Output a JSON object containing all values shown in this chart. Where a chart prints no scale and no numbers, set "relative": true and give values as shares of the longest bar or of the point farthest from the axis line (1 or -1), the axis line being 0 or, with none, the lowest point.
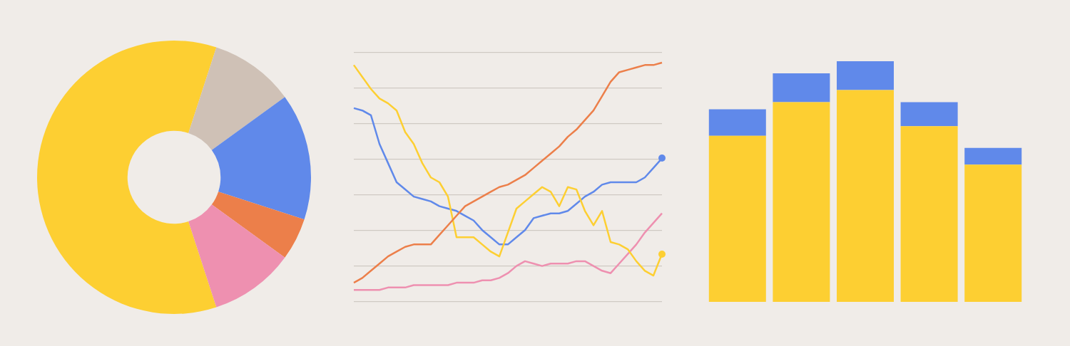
{
  "chart_data": [
    {
      "type": "donut",
      "categories": [
        null,
        null,
        null,
        null,
        null,
        null
      ],
      "values": [
        60,
        10,
        10,
        5,
        5,
        10
      ],
      "colors": [
        "#fdcf32",
        "#cfc1b6",
        "#6089ea",
        "#6089ea",
        "#ec7f4a",
        "#ee90b0"
      ]
    },
    {
      "type": "line",
      "relative": true,
      "grid": "y",
      "categories": [
        null,
        null,
        null,
        null,
        null,
        null,
        null,
        null,
        null,
        null,
        null,
        null,
        null,
        null,
        null,
        null,
        null,
        null,
        null,
        null,
        null,
        null,
        null,
        null,
        null,
        null,
        null,
        null,
        null,
        null,
        null,
        null,
        null,
        null,
        null,
        null,
        null
      ],
      "series": [
        {
          "color": "#ec7f4a",
          "values": [
            0.08,
            0.1,
            0.13,
            0.16,
            0.19,
            0.21,
            0.23,
            0.24,
            0.24,
            0.24,
            0.28,
            0.32,
            0.36,
            0.4,
            0.42,
            0.44,
            0.46,
            0.48,
            0.49,
            0.51,
            0.53,
            0.56,
            0.59,
            0.62,
            0.65,
            0.69,
            0.72,
            0.76,
            0.8,
            0.86,
            0.92,
            0.96,
            0.97,
            0.98,
            0.99,
            0.99,
            1
          ]
        },
        {
          "color": "#fdcf32",
          "values": [
            0.99,
            0.94,
            0.89,
            0.85,
            0.83,
            0.8,
            0.71,
            0.66,
            0.58,
            0.52,
            0.5,
            0.44,
            0.27,
            0.27,
            0.27,
            0.24,
            0.21,
            0.19,
            0.29,
            0.39,
            0.42,
            0.45,
            0.48,
            0.46,
            0.4,
            0.48,
            0.47,
            0.38,
            0.32,
            0.38,
            0.25,
            0.24,
            0.22,
            0.17,
            0.13,
            0.11,
            0.2
          ]
        },
        {
          "color": "#6089ea",
          "values": [
            0.81,
            0.8,
            0.78,
            0.66,
            0.58,
            0.5,
            0.47,
            0.44,
            0.43,
            0.42,
            0.4,
            0.39,
            0.38,
            0.36,
            0.34,
            0.3,
            0.27,
            0.24,
            0.24,
            0.27,
            0.3,
            0.35,
            0.36,
            0.37,
            0.37,
            0.38,
            0.41,
            0.44,
            0.46,
            0.49,
            0.5,
            0.5,
            0.5,
            0.5,
            0.52,
            0.56,
            0.6
          ]
        },
        {
          "color": "#ee90b0",
          "values": [
            0.05,
            0.05,
            0.05,
            0.05,
            0.06,
            0.06,
            0.06,
            0.07,
            0.07,
            0.07,
            0.07,
            0.07,
            0.08,
            0.08,
            0.08,
            0.09,
            0.09,
            0.1,
            0.12,
            0.15,
            0.17,
            0.16,
            0.15,
            0.16,
            0.16,
            0.16,
            0.17,
            0.17,
            0.15,
            0.13,
            0.12,
            0.16,
            0.2,
            0.24,
            0.29,
            0.33,
            0.37
          ]
        }
      ]
    },
    {
      "type": "bar",
      "relative": true,
      "stacked": true,
      "categories": [
        null,
        null,
        null,
        null,
        null
      ],
      "series": [
        {
          "color": "#fdcf32",
          "values": [
            0.69,
            0.83,
            0.88,
            0.73,
            0.57
          ]
        },
        {
          "color": "#6089ea",
          "values": [
            0.11,
            0.12,
            0.12,
            0.1,
            0.07
          ]
        }
      ]
    }
  ]
}
